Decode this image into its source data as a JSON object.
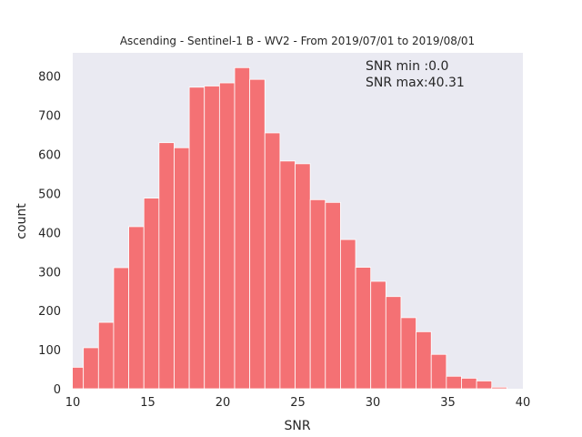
{
  "chart_data": {
    "type": "bar",
    "title": "Ascending - Sentinel-1 B - WV2 - From 2019/07/01 to 2019/08/01",
    "xlabel": "SNR",
    "ylabel": "count",
    "xlim": [
      10,
      40
    ],
    "ylim": [
      0,
      860
    ],
    "xticks": [
      10,
      15,
      20,
      25,
      30,
      35,
      40
    ],
    "yticks": [
      0,
      100,
      200,
      300,
      400,
      500,
      600,
      700,
      800
    ],
    "bin_width": 1.008,
    "bin_start": 9.7,
    "values": [
      55,
      105,
      170,
      310,
      415,
      488,
      630,
      617,
      772,
      775,
      783,
      822,
      792,
      655,
      583,
      576,
      484,
      477,
      382,
      311,
      275,
      236,
      182,
      146,
      88,
      32,
      27,
      20,
      4,
      0
    ],
    "bar_color": "#f47174",
    "background_color": "#eaeaf2",
    "grid": false,
    "annotations": [
      "SNR min :0.0",
      "SNR max:40.31"
    ]
  }
}
